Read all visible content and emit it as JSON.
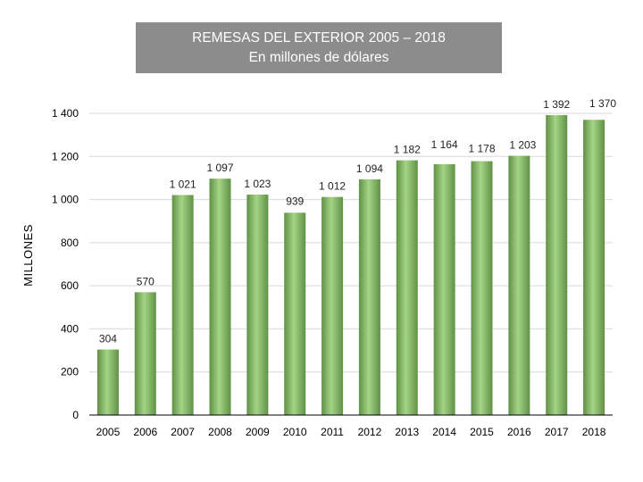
{
  "chart_data": {
    "type": "bar",
    "title": "REMESAS DEL EXTERIOR 2005 – 2018",
    "subtitle": "En millones de dólares",
    "ylabel": "MILLONES",
    "xlabel": "",
    "categories": [
      "2005",
      "2006",
      "2007",
      "2008",
      "2009",
      "2010",
      "2011",
      "2012",
      "2013",
      "2014",
      "2015",
      "2016",
      "2017",
      "2018"
    ],
    "values": [
      304,
      570,
      1021,
      1097,
      1023,
      939,
      1012,
      1094,
      1182,
      1164,
      1178,
      1203,
      1392,
      1370
    ],
    "value_labels": [
      "304",
      "570",
      "1 021",
      "1 097",
      "1 023",
      "939",
      "1 012",
      "1 094",
      "1 182",
      "1 164",
      "1 178",
      "1 203",
      "1 392",
      "1 370"
    ],
    "ylim": [
      0,
      1400
    ],
    "yticks": [
      0,
      200,
      400,
      600,
      800,
      1000,
      1200,
      1400
    ],
    "ytick_labels": [
      "0",
      "200",
      "400",
      "600",
      "800",
      "1 000",
      "1 200",
      "1 400"
    ],
    "grid": true,
    "legend": "none",
    "bar_color": "#8cbf6a"
  }
}
